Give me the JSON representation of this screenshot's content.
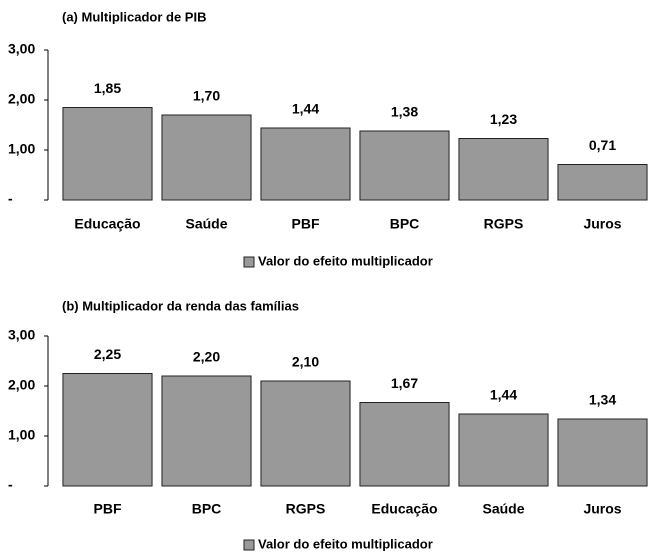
{
  "chart_data": [
    {
      "type": "bar",
      "title": "(a) Multiplicador de PIB",
      "categories": [
        "Educação",
        "Saúde",
        "PBF",
        "BPC",
        "RGPS",
        "Juros"
      ],
      "series": [
        {
          "name": "Valor do efeito multiplicador",
          "color": "#999999",
          "values": [
            1.85,
            1.7,
            1.44,
            1.38,
            1.23,
            0.71
          ],
          "value_labels": [
            "1,85",
            "1,70",
            "1,44",
            "1,38",
            "1,23",
            "0,71"
          ]
        }
      ],
      "ylim": [
        0,
        3
      ],
      "yticks": [
        {
          "value": 0,
          "label": "-"
        },
        {
          "value": 1,
          "label": "1,00"
        },
        {
          "value": 2,
          "label": "2,00"
        },
        {
          "value": 3,
          "label": "3,00"
        }
      ],
      "legend": "bottom"
    },
    {
      "type": "bar",
      "title": "(b) Multiplicador da renda das famílias",
      "categories": [
        "PBF",
        "BPC",
        "RGPS",
        "Educação",
        "Saúde",
        "Juros"
      ],
      "series": [
        {
          "name": "Valor do efeito multiplicador",
          "color": "#999999",
          "values": [
            2.25,
            2.2,
            2.1,
            1.67,
            1.44,
            1.34
          ],
          "value_labels": [
            "2,25",
            "2,20",
            "2,10",
            "1,67",
            "1,44",
            "1,34"
          ]
        }
      ],
      "ylim": [
        0,
        3
      ],
      "yticks": [
        {
          "value": 0,
          "label": "-"
        },
        {
          "value": 1,
          "label": "1,00"
        },
        {
          "value": 2,
          "label": "2,00"
        },
        {
          "value": 3,
          "label": "3,00"
        }
      ],
      "legend": "bottom"
    }
  ]
}
